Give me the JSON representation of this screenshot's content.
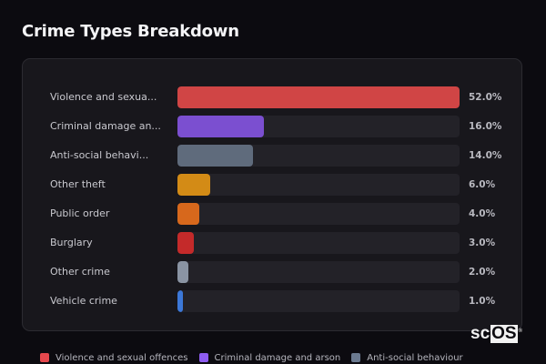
{
  "header": {
    "title": "Crime Types Breakdown"
  },
  "chart_data": {
    "type": "bar",
    "orientation": "horizontal",
    "title": "Crime Types Breakdown",
    "xlabel": "",
    "ylabel": "",
    "xlim": [
      0,
      52
    ],
    "grid": false,
    "categories": [
      "Violence and sexual offences",
      "Criminal damage and arson",
      "Anti-social behaviour",
      "Other theft",
      "Public order",
      "Burglary",
      "Other crime",
      "Vehicle crime"
    ],
    "category_labels_truncated": [
      "Violence and sexua...",
      "Criminal damage an...",
      "Anti-social behavi...",
      "Other theft",
      "Public order",
      "Burglary",
      "Other crime",
      "Vehicle crime"
    ],
    "values": [
      52.0,
      16.0,
      14.0,
      6.0,
      4.0,
      3.0,
      2.0,
      1.0
    ],
    "value_labels": [
      "52.0%",
      "16.0%",
      "14.0%",
      "6.0%",
      "4.0%",
      "3.0%",
      "2.0%",
      "1.0%"
    ],
    "colors": [
      "#d04545",
      "#7b4fd0",
      "#5f6b7c",
      "#d38b16",
      "#d7681c",
      "#c42a2a",
      "#8a94a3",
      "#3c78d8"
    ],
    "legend": {
      "position": "bottom",
      "entries": [
        "Violence and sexual offences",
        "Criminal damage and arson",
        "Anti-social behaviour"
      ]
    }
  },
  "rows": [
    {
      "label": "Violence and sexua...",
      "value": "52.0%",
      "pct": 52.0,
      "color": "#d04545"
    },
    {
      "label": "Criminal damage an...",
      "value": "16.0%",
      "pct": 16.0,
      "color": "#7b4fd0"
    },
    {
      "label": "Anti-social behavi...",
      "value": "14.0%",
      "pct": 14.0,
      "color": "#5f6b7c"
    },
    {
      "label": "Other theft",
      "value": "6.0%",
      "pct": 6.0,
      "color": "#d38b16"
    },
    {
      "label": "Public order",
      "value": "4.0%",
      "pct": 4.0,
      "color": "#d7681c"
    },
    {
      "label": "Burglary",
      "value": "3.0%",
      "pct": 3.0,
      "color": "#c42a2a"
    },
    {
      "label": "Other crime",
      "value": "2.0%",
      "pct": 2.0,
      "color": "#8a94a3"
    },
    {
      "label": "Vehicle crime",
      "value": "1.0%",
      "pct": 1.0,
      "color": "#3c78d8"
    }
  ],
  "legend": [
    {
      "label": "Violence and sexual offences",
      "color": "#e5484d"
    },
    {
      "label": "Criminal damage and arson",
      "color": "#8e5cf0"
    },
    {
      "label": "Anti-social behaviour",
      "color": "#6b7a90"
    }
  ],
  "watermark": {
    "prefix": "sc",
    "boxed": "OS",
    "mark": "®"
  }
}
